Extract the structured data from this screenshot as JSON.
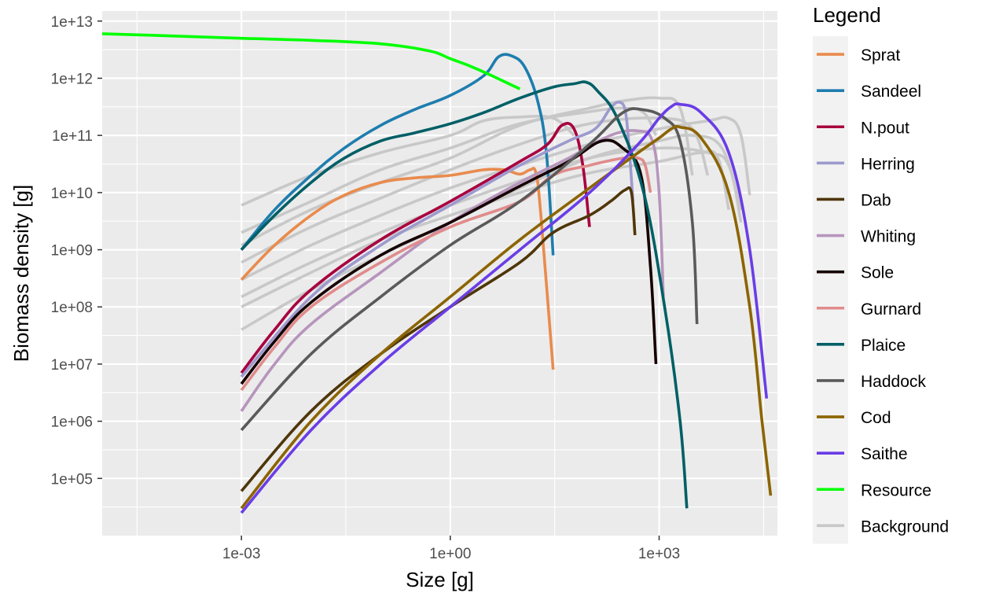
{
  "chart_data": {
    "type": "line",
    "xlabel": "Size [g]",
    "ylabel": "Biomass density [g]",
    "x_scale": "log10",
    "y_scale": "log10",
    "xlim": [
      1e-05,
      50000.0
    ],
    "ylim": [
      10000.0,
      15000000000000.0
    ],
    "x_ticks": [
      {
        "value": 0.001,
        "label": "1e-03"
      },
      {
        "value": 1,
        "label": "1e+00"
      },
      {
        "value": 1000,
        "label": "1e+03"
      }
    ],
    "y_ticks": [
      {
        "value": 100000.0,
        "label": "1e+05"
      },
      {
        "value": 1000000.0,
        "label": "1e+06"
      },
      {
        "value": 10000000.0,
        "label": "1e+07"
      },
      {
        "value": 100000000.0,
        "label": "1e+08"
      },
      {
        "value": 1000000000.0,
        "label": "1e+09"
      },
      {
        "value": 10000000000.0,
        "label": "1e+10"
      },
      {
        "value": 100000000000.0,
        "label": "1e+11"
      },
      {
        "value": 1000000000000.0,
        "label": "1e+12"
      },
      {
        "value": 10000000000000.0,
        "label": "1e+13"
      }
    ],
    "grid": true,
    "legend": {
      "title": "Legend",
      "position": "right"
    },
    "series": [
      {
        "name": "Sprat",
        "color": "#E98B4D",
        "points": [
          [
            0.001,
            300000000.0
          ],
          [
            0.003,
            1200000000.0
          ],
          [
            0.01,
            4000000000.0
          ],
          [
            0.03,
            9000000000.0
          ],
          [
            0.1,
            15000000000.0
          ],
          [
            0.3,
            18000000000.0
          ],
          [
            1,
            20000000000.0
          ],
          [
            3,
            25000000000.0
          ],
          [
            6,
            25000000000.0
          ],
          [
            10,
            21000000000.0
          ],
          [
            14,
            25000000000.0
          ],
          [
            17,
            22000000000.0
          ],
          [
            20,
            4000000000.0
          ],
          [
            30,
            8000000.0
          ]
        ]
      },
      {
        "name": "Sandeel",
        "color": "#1E7DAE",
        "points": [
          [
            0.001,
            1000000000.0
          ],
          [
            0.003,
            5000000000.0
          ],
          [
            0.01,
            20000000000.0
          ],
          [
            0.03,
            60000000000.0
          ],
          [
            0.1,
            150000000000.0
          ],
          [
            0.3,
            280000000000.0
          ],
          [
            1,
            500000000000.0
          ],
          [
            3,
            1100000000000.0
          ],
          [
            5,
            2400000000000.0
          ],
          [
            8,
            2400000000000.0
          ],
          [
            12,
            1500000000000.0
          ],
          [
            18,
            400000000000.0
          ],
          [
            24,
            50000000000.0
          ],
          [
            30,
            800000000.0
          ]
        ]
      },
      {
        "name": "N.pout",
        "color": "#A8003F",
        "points": [
          [
            0.001,
            7000000.0
          ],
          [
            0.003,
            40000000.0
          ],
          [
            0.01,
            200000000.0
          ],
          [
            0.1,
            1500000000.0
          ],
          [
            1,
            7000000000.0
          ],
          [
            10,
            35000000000.0
          ],
          [
            25,
            70000000000.0
          ],
          [
            40,
            150000000000.0
          ],
          [
            60,
            130000000000.0
          ],
          [
            80,
            30000000000.0
          ],
          [
            100,
            2500000000.0
          ]
        ]
      },
      {
        "name": "Herring",
        "color": "#9D9ACE",
        "points": [
          [
            0.001,
            6000000.0
          ],
          [
            0.01,
            150000000.0
          ],
          [
            0.1,
            1200000000.0
          ],
          [
            1,
            6000000000.0
          ],
          [
            10,
            30000000000.0
          ],
          [
            50,
            80000000000.0
          ],
          [
            120,
            130000000000.0
          ],
          [
            200,
            300000000000.0
          ],
          [
            270,
            380000000000.0
          ],
          [
            330,
            250000000000.0
          ],
          [
            380,
            40000000000.0
          ],
          [
            420,
            7000000000.0
          ]
        ]
      },
      {
        "name": "Dab",
        "color": "#4F3609",
        "points": [
          [
            0.001,
            60000.0
          ],
          [
            0.01,
            1500000.0
          ],
          [
            0.1,
            15000000.0
          ],
          [
            1,
            100000000.0
          ],
          [
            10,
            600000000.0
          ],
          [
            30,
            2000000000.0
          ],
          [
            100,
            4000000000.0
          ],
          [
            200,
            7000000000.0
          ],
          [
            320,
            11000000000.0
          ],
          [
            400,
            10000000000.0
          ],
          [
            450,
            1800000000.0
          ]
        ]
      },
      {
        "name": "Whiting",
        "color": "#B695BC",
        "points": [
          [
            0.001,
            1500000.0
          ],
          [
            0.003,
            10000000.0
          ],
          [
            0.01,
            50000000.0
          ],
          [
            0.1,
            400000000.0
          ],
          [
            1,
            3000000000.0
          ],
          [
            10,
            15000000000.0
          ],
          [
            50,
            40000000000.0
          ],
          [
            200,
            100000000000.0
          ],
          [
            500,
            120000000000.0
          ],
          [
            800,
            80000000000.0
          ],
          [
            1000,
            10000000000.0
          ],
          [
            1150,
            150000000.0
          ]
        ]
      },
      {
        "name": "Sole",
        "color": "#160001",
        "points": [
          [
            0.001,
            4500000.0
          ],
          [
            0.003,
            25000000.0
          ],
          [
            0.01,
            120000000.0
          ],
          [
            0.1,
            800000000.0
          ],
          [
            1,
            3000000000.0
          ],
          [
            10,
            13000000000.0
          ],
          [
            50,
            35000000000.0
          ],
          [
            150,
            80000000000.0
          ],
          [
            300,
            60000000000.0
          ],
          [
            550,
            20000000000.0
          ],
          [
            750,
            500000000.0
          ],
          [
            900,
            10000000.0
          ]
        ]
      },
      {
        "name": "Gurnard",
        "color": "#E08B8B",
        "points": [
          [
            0.001,
            3500000.0
          ],
          [
            0.003,
            20000000.0
          ],
          [
            0.01,
            100000000.0
          ],
          [
            0.1,
            600000000.0
          ],
          [
            1,
            2500000000.0
          ],
          [
            10,
            7000000000.0
          ],
          [
            30,
            20000000000.0
          ],
          [
            100,
            30000000000.0
          ],
          [
            300,
            40000000000.0
          ],
          [
            500,
            40000000000.0
          ],
          [
            630,
            30000000000.0
          ],
          [
            750,
            10000000000.0
          ]
        ]
      },
      {
        "name": "Plaice",
        "color": "#005F66",
        "points": [
          [
            0.001,
            1000000000.0
          ],
          [
            0.003,
            4000000000.0
          ],
          [
            0.01,
            15000000000.0
          ],
          [
            0.03,
            40000000000.0
          ],
          [
            0.1,
            80000000000.0
          ],
          [
            0.3,
            110000000000.0
          ],
          [
            1,
            160000000000.0
          ],
          [
            3,
            250000000000.0
          ],
          [
            10,
            450000000000.0
          ],
          [
            30,
            700000000000.0
          ],
          [
            60,
            800000000000.0
          ],
          [
            90,
            850000000000.0
          ],
          [
            130,
            600000000000.0
          ],
          [
            250,
            200000000000.0
          ],
          [
            600,
            10000000000.0
          ],
          [
            1200,
            100000000.0
          ],
          [
            2000,
            1000000.0
          ],
          [
            2500,
            30000.0
          ]
        ]
      },
      {
        "name": "Haddock",
        "color": "#5A5A5A",
        "points": [
          [
            0.001,
            700000.0
          ],
          [
            0.01,
            15000000.0
          ],
          [
            0.1,
            150000000.0
          ],
          [
            1,
            1200000000.0
          ],
          [
            10,
            7000000000.0
          ],
          [
            100,
            70000000000.0
          ],
          [
            300,
            250000000000.0
          ],
          [
            600,
            280000000000.0
          ],
          [
            1200,
            200000000000.0
          ],
          [
            2000,
            80000000000.0
          ],
          [
            3000,
            3000000000.0
          ],
          [
            3500,
            50000000.0
          ]
        ]
      },
      {
        "name": "Cod",
        "color": "#8C6400",
        "points": [
          [
            0.001,
            30000.0
          ],
          [
            0.01,
            1000000.0
          ],
          [
            0.1,
            15000000.0
          ],
          [
            1,
            150000000.0
          ],
          [
            10,
            1500000000.0
          ],
          [
            100,
            12000000000.0
          ],
          [
            500,
            50000000000.0
          ],
          [
            1000,
            90000000000.0
          ],
          [
            1500,
            130000000000.0
          ],
          [
            2000,
            140000000000.0
          ],
          [
            4000,
            90000000000.0
          ],
          [
            10000,
            10000000000.0
          ],
          [
            20000,
            100000000.0
          ],
          [
            30000,
            1000000.0
          ],
          [
            40000,
            50000.0
          ]
        ]
      },
      {
        "name": "Saithe",
        "color": "#6A3DE6",
        "points": [
          [
            0.001,
            25000.0
          ],
          [
            0.01,
            700000.0
          ],
          [
            0.1,
            10000000.0
          ],
          [
            1,
            100000000.0
          ],
          [
            10,
            1000000000.0
          ],
          [
            100,
            10000000000.0
          ],
          [
            500,
            70000000000.0
          ],
          [
            1000,
            200000000000.0
          ],
          [
            1500,
            320000000000.0
          ],
          [
            2000,
            350000000000.0
          ],
          [
            4000,
            250000000000.0
          ],
          [
            10000,
            50000000000.0
          ],
          [
            20000,
            1000000000.0
          ],
          [
            35000,
            2500000.0
          ]
        ]
      },
      {
        "name": "Resource",
        "color": "#00FF00",
        "points": [
          [
            1e-05,
            6000000000000.0
          ],
          [
            0.0001,
            5500000000000.0
          ],
          [
            0.001,
            5000000000000.0
          ],
          [
            0.01,
            4600000000000.0
          ],
          [
            0.1,
            4000000000000.0
          ],
          [
            0.5,
            3000000000000.0
          ],
          [
            1,
            2200000000000.0
          ],
          [
            2,
            1600000000000.0
          ],
          [
            4,
            1100000000000.0
          ],
          [
            10,
            650000000000.0
          ]
        ]
      },
      {
        "name": "Background",
        "color": "#C8C8C8",
        "points": [
          [
            [
              0.001,
              6000000000.0
            ],
            [
              0.01,
              20000000000.0
            ],
            [
              0.1,
              50000000000.0
            ],
            [
              1,
              100000000000.0
            ],
            [
              3,
              180000000000.0
            ],
            [
              10,
              210000000000.0
            ],
            [
              30,
              200000000000.0
            ],
            [
              60,
              100000000000.0
            ]
          ],
          [
            [
              0.001,
              2000000000.0
            ],
            [
              0.01,
              7000000000.0
            ],
            [
              0.1,
              25000000000.0
            ],
            [
              1,
              60000000000.0
            ],
            [
              10,
              160000000000.0
            ],
            [
              100,
              260000000000.0
            ],
            [
              300,
              300000000000.0
            ],
            [
              600,
              250000000000.0
            ],
            [
              900,
              100000000000.0
            ]
          ],
          [
            [
              0.001,
              1200000000.0
            ],
            [
              0.01,
              5000000000.0
            ],
            [
              0.1,
              15000000000.0
            ],
            [
              1,
              40000000000.0
            ],
            [
              10,
              150000000000.0
            ],
            [
              100,
              300000000000.0
            ],
            [
              300,
              400000000000.0
            ],
            [
              1000,
              450000000000.0
            ],
            [
              2000,
              300000000000.0
            ],
            [
              3000,
              20000000000.0
            ]
          ],
          [
            [
              0.001,
              600000000.0
            ],
            [
              0.01,
              2500000000.0
            ],
            [
              0.1,
              8000000000.0
            ],
            [
              1,
              25000000000.0
            ],
            [
              10,
              70000000000.0
            ],
            [
              100,
              160000000000.0
            ],
            [
              1000,
              200000000000.0
            ],
            [
              3000,
              130000000000.0
            ],
            [
              5000,
              20000000000.0
            ]
          ],
          [
            [
              0.001,
              300000000.0
            ],
            [
              0.01,
              1200000000.0
            ],
            [
              0.1,
              4000000000.0
            ],
            [
              1,
              12000000000.0
            ],
            [
              10,
              30000000000.0
            ],
            [
              100,
              70000000000.0
            ],
            [
              1000,
              130000000000.0
            ],
            [
              5000,
              180000000000.0
            ],
            [
              10000,
              200000000000.0
            ],
            [
              15000,
              100000000000.0
            ],
            [
              20000,
              9000000000.0
            ]
          ],
          [
            [
              0.001,
              150000000.0
            ],
            [
              0.01,
              600000000.0
            ],
            [
              0.1,
              2000000000.0
            ],
            [
              1,
              6000000000.0
            ],
            [
              10,
              16000000000.0
            ],
            [
              100,
              40000000000.0
            ],
            [
              1000,
              60000000000.0
            ],
            [
              5000,
              50000000000.0
            ],
            [
              10000,
              30000000000.0
            ],
            [
              15000,
              3000000000.0
            ]
          ],
          [
            [
              0.001,
              100000000.0
            ],
            [
              0.01,
              400000000.0
            ],
            [
              0.1,
              1500000000.0
            ],
            [
              1,
              4000000000.0
            ],
            [
              10,
              10000000000.0
            ],
            [
              100,
              22000000000.0
            ],
            [
              1000,
              35000000000.0
            ],
            [
              4000,
              50000000000.0
            ],
            [
              7000,
              40000000000.0
            ],
            [
              10000,
              5000000000.0
            ]
          ],
          [
            [
              0.001,
              40000000.0
            ],
            [
              0.01,
              200000000.0
            ],
            [
              0.1,
              800000000.0
            ],
            [
              1,
              3000000000.0
            ],
            [
              10,
              12000000000.0
            ],
            [
              100,
              40000000000.0
            ],
            [
              1000,
              80000000000.0
            ],
            [
              3000,
              100000000000.0
            ],
            [
              8000,
              60000000000.0
            ],
            [
              15000,
              5000000000.0
            ]
          ]
        ]
      }
    ]
  }
}
